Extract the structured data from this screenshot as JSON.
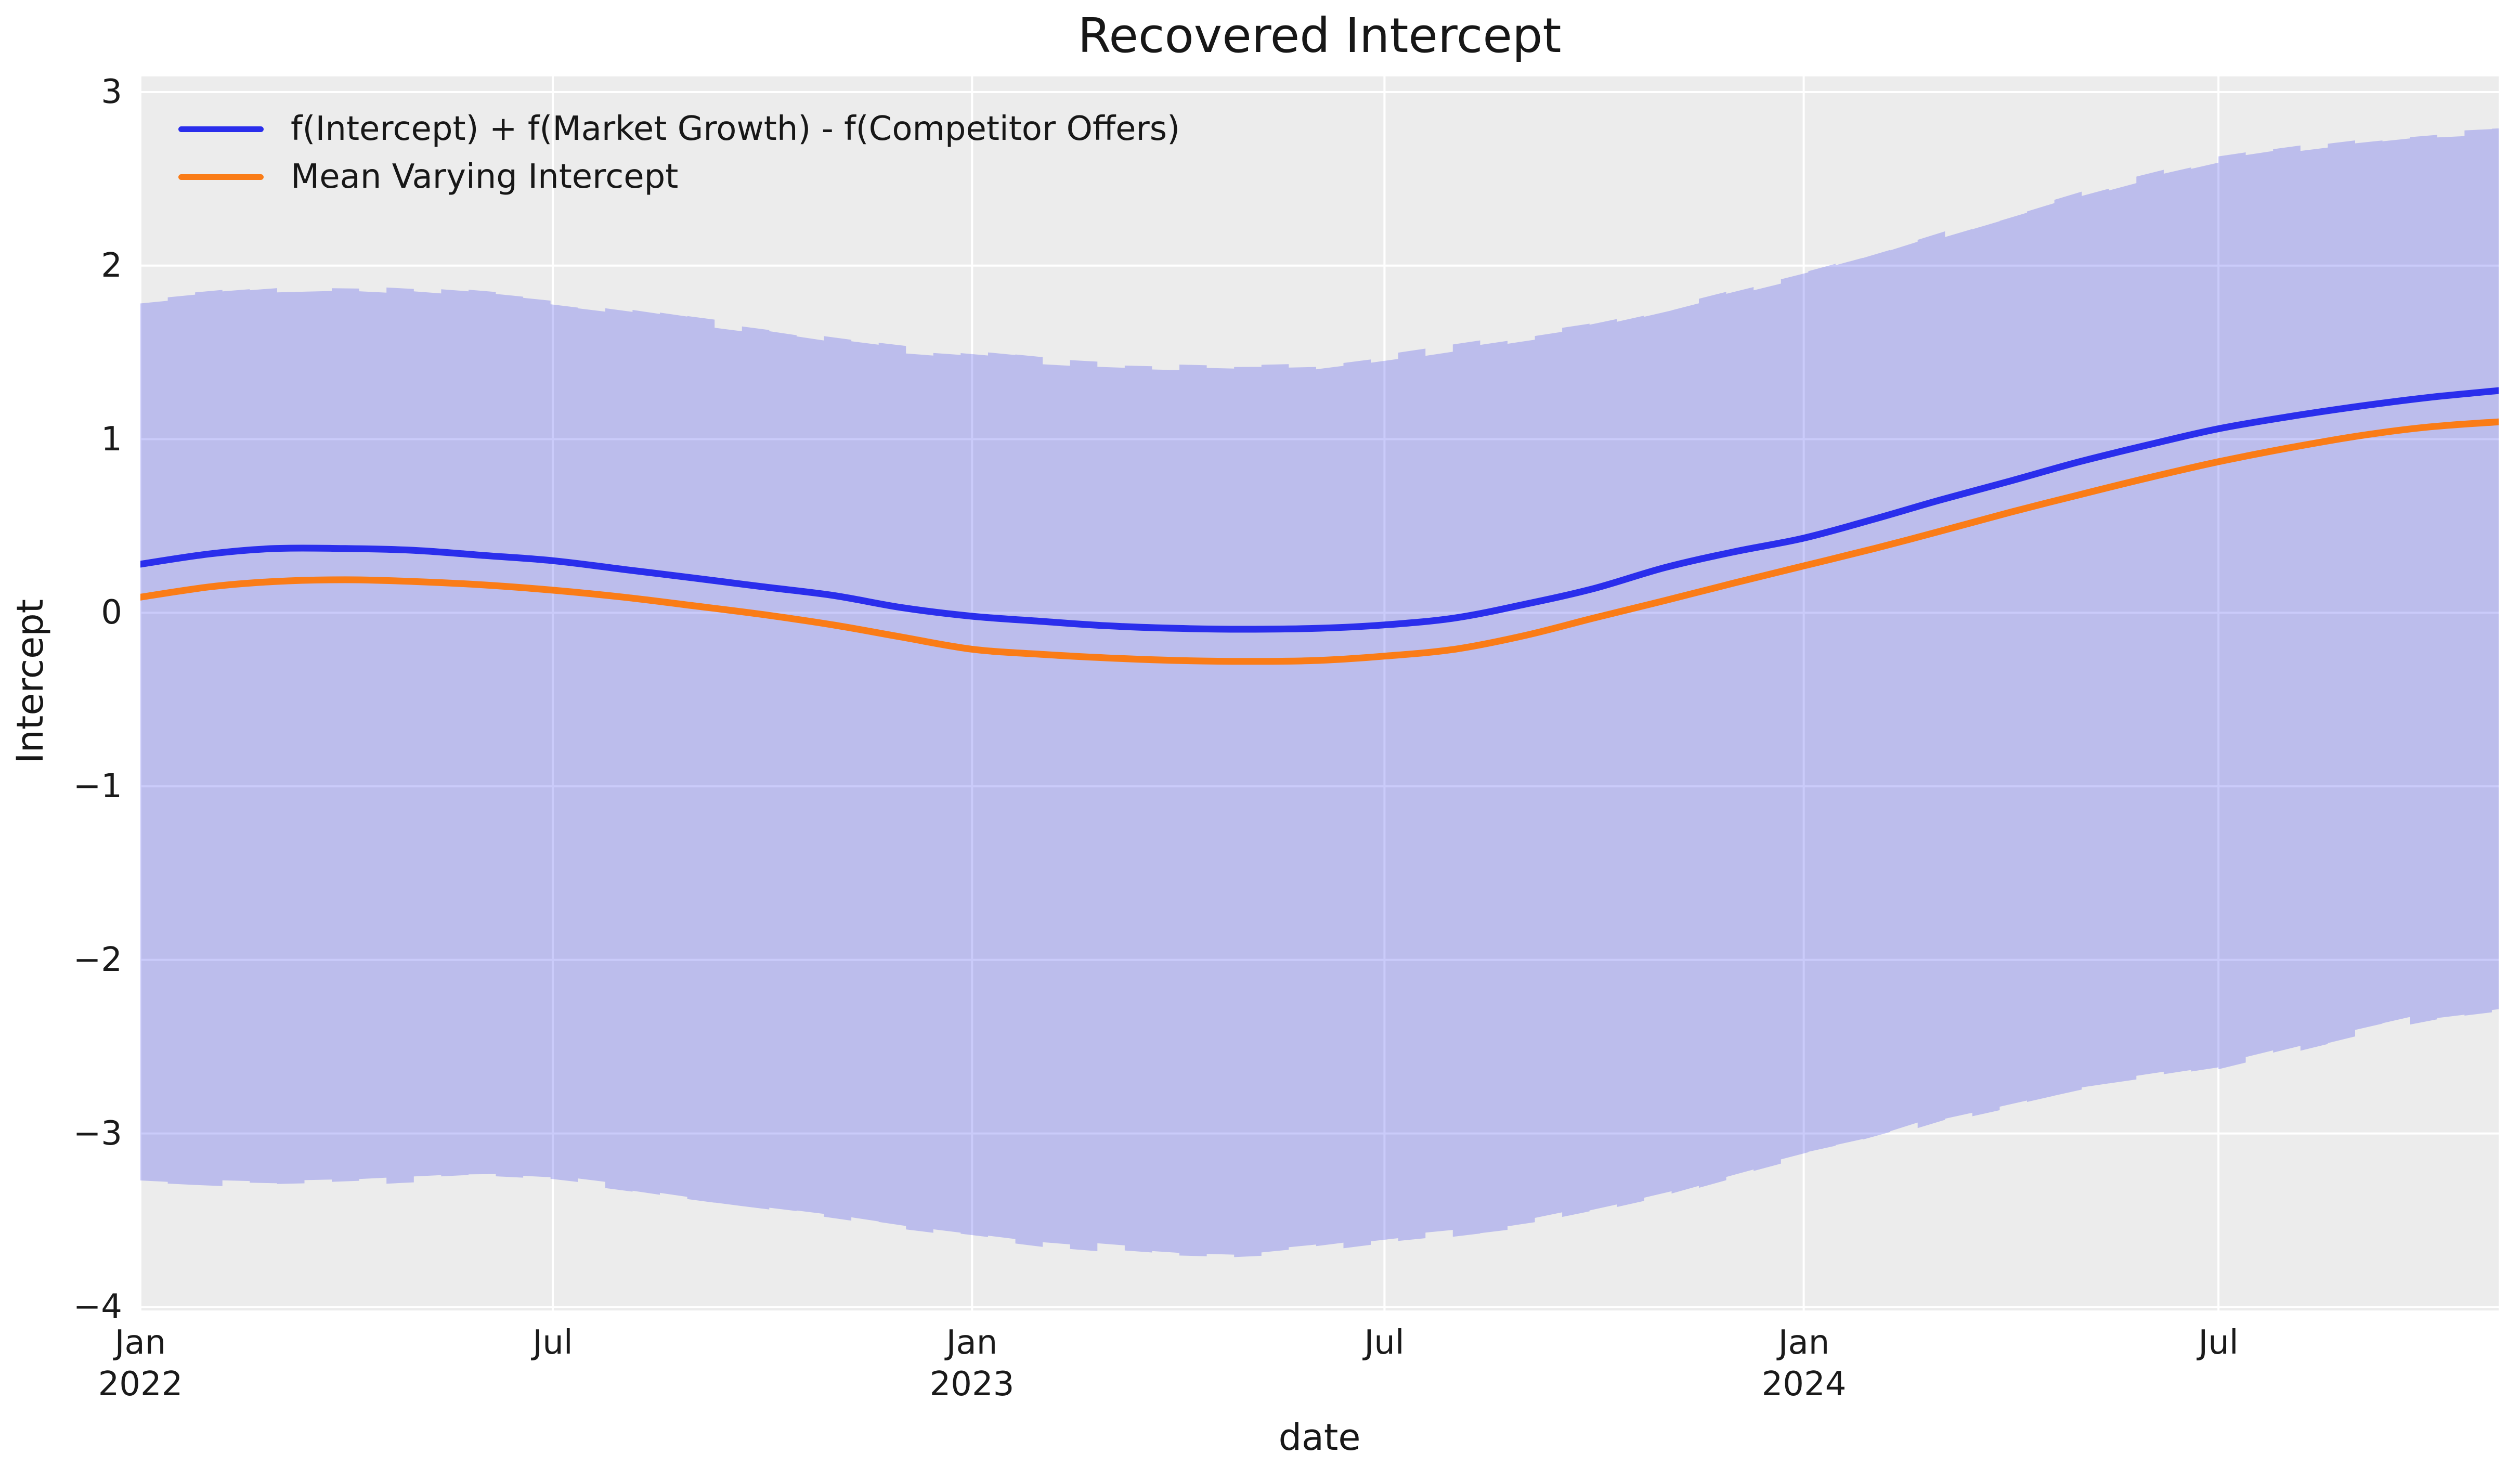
{
  "figure": {
    "title": "Recovered Intercept"
  },
  "chart_data": {
    "type": "line",
    "title": "Recovered Intercept",
    "xlabel": "date",
    "ylabel": "Intercept",
    "colors": {
      "figure_background": "#ffffff",
      "axes_background": "#ececec",
      "grid": "#ffffff",
      "text": "#1a1a1a",
      "line_1": "#2a2eec",
      "line_2": "#fa7c17",
      "band": "#2a2eec"
    },
    "legend_position": "upper left",
    "grid": "on",
    "xlim_days": [
      0,
      1035
    ],
    "ylim": [
      -4.02,
      3.09
    ],
    "x_ticks": [
      {
        "label": "Jan",
        "year": "2022",
        "day": 0
      },
      {
        "label": "Jul",
        "year": "",
        "day": 181
      },
      {
        "label": "Jan",
        "year": "2023",
        "day": 365
      },
      {
        "label": "Jul",
        "year": "",
        "day": 546
      },
      {
        "label": "Jan",
        "year": "2024",
        "day": 730
      },
      {
        "label": "Jul",
        "year": "",
        "day": 912
      }
    ],
    "y_ticks": [
      {
        "value": 3,
        "label": "3"
      },
      {
        "value": 2,
        "label": "2"
      },
      {
        "value": 1,
        "label": "1"
      },
      {
        "value": 0,
        "label": "0"
      },
      {
        "value": -1,
        "label": "−1"
      },
      {
        "value": -2,
        "label": "−2"
      },
      {
        "value": -3,
        "label": "−3"
      },
      {
        "value": -4,
        "label": "−4"
      }
    ],
    "x_months": [
      "2022-01",
      "2022-02",
      "2022-03",
      "2022-04",
      "2022-05",
      "2022-06",
      "2022-07",
      "2022-08",
      "2022-09",
      "2022-10",
      "2022-11",
      "2022-12",
      "2023-01",
      "2023-02",
      "2023-03",
      "2023-04",
      "2023-05",
      "2023-06",
      "2023-07",
      "2023-08",
      "2023-09",
      "2023-10",
      "2023-11",
      "2023-12",
      "2024-01",
      "2024-02",
      "2024-03",
      "2024-04",
      "2024-05",
      "2024-06",
      "2024-07",
      "2024-08",
      "2024-09",
      "2024-10",
      "2024-11"
    ],
    "x_days": [
      0,
      31,
      59,
      90,
      120,
      151,
      181,
      212,
      243,
      273,
      304,
      334,
      365,
      396,
      424,
      455,
      485,
      516,
      546,
      577,
      608,
      638,
      669,
      699,
      730,
      761,
      790,
      821,
      851,
      882,
      912,
      943,
      974,
      1004,
      1035
    ],
    "series": [
      {
        "name": "f(Intercept) + f(Market Growth) - f(Competitor Offers)",
        "color": "#2a2eec",
        "values": [
          0.28,
          0.34,
          0.37,
          0.37,
          0.36,
          0.33,
          0.3,
          0.25,
          0.2,
          0.15,
          0.1,
          0.03,
          -0.02,
          -0.05,
          -0.075,
          -0.09,
          -0.095,
          -0.09,
          -0.07,
          -0.03,
          0.05,
          0.14,
          0.26,
          0.35,
          0.43,
          0.54,
          0.65,
          0.76,
          0.87,
          0.97,
          1.06,
          1.13,
          1.19,
          1.24,
          1.28
        ]
      },
      {
        "name": "Mean Varying Intercept",
        "color": "#fa7c17",
        "values": [
          0.09,
          0.15,
          0.18,
          0.19,
          0.18,
          0.16,
          0.13,
          0.09,
          0.04,
          -0.01,
          -0.07,
          -0.14,
          -0.21,
          -0.24,
          -0.26,
          -0.275,
          -0.28,
          -0.275,
          -0.25,
          -0.21,
          -0.13,
          -0.03,
          0.07,
          0.17,
          0.27,
          0.37,
          0.47,
          0.58,
          0.68,
          0.78,
          0.87,
          0.95,
          1.02,
          1.07,
          1.1
        ]
      }
    ],
    "band": {
      "name": "posterior-uncertainty-band",
      "color": "#2a2eec",
      "opacity": 0.25,
      "upper": [
        1.8,
        1.84,
        1.87,
        1.88,
        1.86,
        1.83,
        1.79,
        1.74,
        1.68,
        1.63,
        1.57,
        1.52,
        1.49,
        1.45,
        1.43,
        1.42,
        1.41,
        1.42,
        1.47,
        1.53,
        1.59,
        1.65,
        1.74,
        1.84,
        1.94,
        2.05,
        2.17,
        2.29,
        2.41,
        2.52,
        2.61,
        2.67,
        2.72,
        2.76,
        2.78
      ],
      "lower": [
        -3.26,
        -3.28,
        -3.29,
        -3.28,
        -3.26,
        -3.24,
        -3.26,
        -3.31,
        -3.37,
        -3.42,
        -3.47,
        -3.53,
        -3.58,
        -3.63,
        -3.66,
        -3.69,
        -3.7,
        -3.66,
        -3.61,
        -3.57,
        -3.52,
        -3.44,
        -3.35,
        -3.24,
        -3.13,
        -3.04,
        -2.92,
        -2.83,
        -2.74,
        -2.68,
        -2.62,
        -2.52,
        -2.42,
        -2.33,
        -2.28
      ]
    }
  }
}
